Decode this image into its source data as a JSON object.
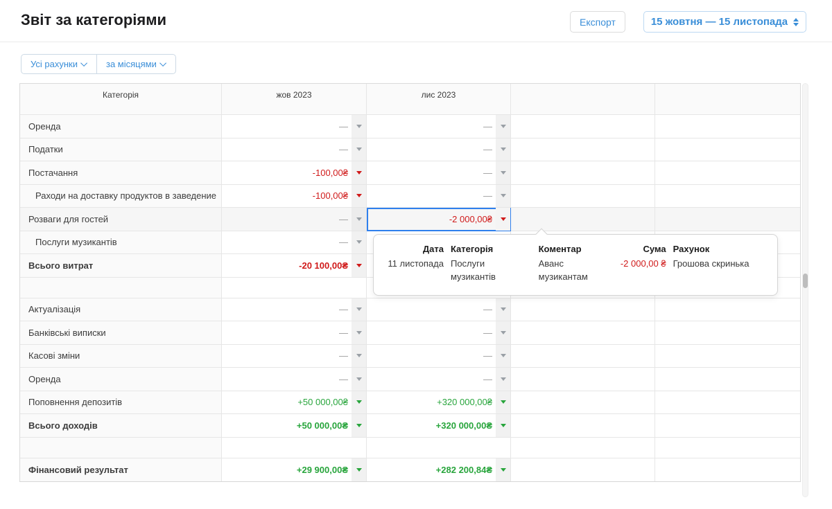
{
  "page": {
    "title": "Звіт за категоріями",
    "export_label": "Експорт",
    "date_range": "15 жовтня — 15 листопада"
  },
  "filters": {
    "accounts": "Усі рахунки",
    "grouping": "за місяцями"
  },
  "colors": {
    "accent": "#3a8ed8",
    "red": "#d01a1a",
    "green": "#28a53c",
    "selected": "#2f80ed"
  },
  "table": {
    "columns": [
      "Категорія",
      "жов 2023",
      "лис 2023",
      "",
      ""
    ],
    "rows": [
      {
        "category": "Оренда",
        "cells": [
          {
            "text": "—",
            "tone": "muted",
            "arrow": true
          },
          {
            "text": "—",
            "tone": "muted",
            "arrow": true
          },
          {},
          {}
        ]
      },
      {
        "category": "Податки",
        "cells": [
          {
            "text": "—",
            "tone": "muted",
            "arrow": true
          },
          {
            "text": "—",
            "tone": "muted",
            "arrow": true
          },
          {},
          {}
        ]
      },
      {
        "category": "Постачання",
        "cells": [
          {
            "text": "-100,00₴",
            "tone": "red",
            "arrow": true
          },
          {
            "text": "—",
            "tone": "muted",
            "arrow": true
          },
          {},
          {}
        ]
      },
      {
        "category": "Раходи на доставку продуктов в заведение",
        "indent": true,
        "cells": [
          {
            "text": "-100,00₴",
            "tone": "red",
            "arrow": true
          },
          {
            "text": "—",
            "tone": "muted",
            "arrow": true
          },
          {},
          {}
        ]
      },
      {
        "category": "Розваги для гостей",
        "highlight": true,
        "cells": [
          {
            "text": "—",
            "tone": "muted",
            "arrow": true
          },
          {
            "text": "-2 000,00₴",
            "tone": "red",
            "arrow": true,
            "selected": true
          },
          {},
          {}
        ]
      },
      {
        "category": "Послуги музикантів",
        "indent": true,
        "cells": [
          {
            "text": "—",
            "tone": "muted",
            "arrow": true
          },
          {},
          {},
          {}
        ]
      },
      {
        "category": "Всього витрат",
        "bold": true,
        "cells": [
          {
            "text": "-20 100,00₴",
            "tone": "red",
            "arrow": true,
            "bold": true
          },
          {},
          {},
          {}
        ]
      },
      {
        "category": "",
        "empty": true,
        "cells": [
          {},
          {},
          {},
          {}
        ]
      },
      {
        "category": "Актуалізація",
        "cells": [
          {
            "text": "—",
            "tone": "muted",
            "arrow": true
          },
          {
            "text": "—",
            "tone": "muted",
            "arrow": true
          },
          {},
          {}
        ]
      },
      {
        "category": "Банківські виписки",
        "cells": [
          {
            "text": "—",
            "tone": "muted",
            "arrow": true
          },
          {
            "text": "—",
            "tone": "muted",
            "arrow": true
          },
          {},
          {}
        ]
      },
      {
        "category": "Касові зміни",
        "cells": [
          {
            "text": "—",
            "tone": "muted",
            "arrow": true
          },
          {
            "text": "—",
            "tone": "muted",
            "arrow": true
          },
          {},
          {}
        ]
      },
      {
        "category": "Оренда",
        "cells": [
          {
            "text": "—",
            "tone": "muted",
            "arrow": true
          },
          {
            "text": "—",
            "tone": "muted",
            "arrow": true
          },
          {},
          {}
        ]
      },
      {
        "category": "Поповнення депозитів",
        "cells": [
          {
            "text": "+50 000,00₴",
            "tone": "green",
            "arrow": true
          },
          {
            "text": "+320 000,00₴",
            "tone": "green",
            "arrow": true
          },
          {},
          {}
        ]
      },
      {
        "category": "Всього доходів",
        "bold": true,
        "cells": [
          {
            "text": "+50 000,00₴",
            "tone": "green",
            "arrow": true,
            "bold": true
          },
          {
            "text": "+320 000,00₴",
            "tone": "green",
            "arrow": true,
            "bold": true
          },
          {},
          {}
        ]
      },
      {
        "category": "",
        "empty": true,
        "cells": [
          {},
          {},
          {},
          {}
        ]
      },
      {
        "category": "Фінансовий результат",
        "bold": true,
        "cells": [
          {
            "text": "+29 900,00₴",
            "tone": "green",
            "arrow": true,
            "bold": true
          },
          {
            "text": "+282 200,84₴",
            "tone": "green",
            "arrow": true,
            "bold": true
          },
          {},
          {}
        ]
      }
    ]
  },
  "popup": {
    "columns": [
      {
        "label": "Дата",
        "value": "11 листопада"
      },
      {
        "label": "Категорія",
        "value": "Послуги музикантів"
      },
      {
        "label": "Коментар",
        "value": "Аванс музикантам"
      },
      {
        "label": "Сума",
        "value": "-2 000,00 ₴"
      },
      {
        "label": "Рахунок",
        "value": "Грошова скринька"
      }
    ]
  }
}
